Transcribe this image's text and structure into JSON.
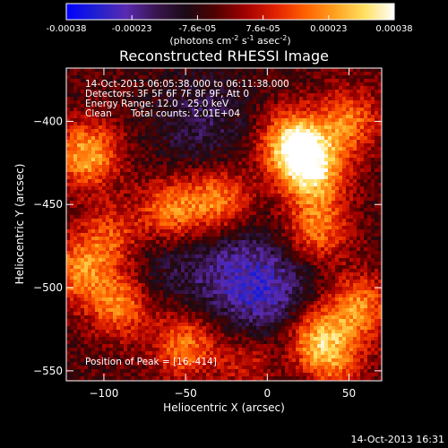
{
  "colors": {
    "background": "#000000",
    "foreground": "#ffffff",
    "colormap": [
      "#0000ff",
      "#2020d0",
      "#5a2ab0",
      "#3a1550",
      "#1a0a14",
      "#500000",
      "#a00000",
      "#e02000",
      "#ff6000",
      "#ffa020",
      "#ffe060",
      "#ffffff"
    ]
  },
  "colorbar": {
    "ticks": [
      "-0.00038",
      "-0.00023",
      "-7.6e-05",
      "7.6e-05",
      "0.00023",
      "0.00038"
    ],
    "unit_label": "(photons cm",
    "unit_sup1": "-2",
    "unit_mid": " s",
    "unit_sup2": "-1",
    "unit_mid2": " asec",
    "unit_sup3": "-2",
    "unit_end": ")"
  },
  "chart_data": {
    "type": "heatmap",
    "title": "Reconstructed RHESSI Image",
    "xlabel": "Heliocentric X (arcsec)",
    "ylabel": "Heliocentric Y (arcsec)",
    "xlim": [
      -123,
      70
    ],
    "ylim": [
      -556,
      -368
    ],
    "zlim": [
      -0.00038,
      0.00038
    ],
    "xticks": [
      -100,
      -50,
      0,
      50
    ],
    "yticks": [
      -400,
      -450,
      -500,
      -550
    ],
    "xtick_labels": [
      "−100",
      "−50",
      "0",
      "50"
    ],
    "ytick_labels": [
      "−400",
      "−450",
      "−500",
      "−550"
    ],
    "peak": [
      16,
      -414
    ],
    "bright_sources": [
      {
        "x": 16,
        "y": -414,
        "value": 0.00038
      },
      {
        "x": 28,
        "y": -430,
        "value": 0.00032
      },
      {
        "x": -110,
        "y": -420,
        "value": 0.0003
      },
      {
        "x": -60,
        "y": -455,
        "value": 0.00027
      },
      {
        "x": -30,
        "y": -448,
        "value": 0.00026
      },
      {
        "x": 30,
        "y": -465,
        "value": 0.00024
      },
      {
        "x": 55,
        "y": -512,
        "value": 0.00026
      },
      {
        "x": 28,
        "y": -530,
        "value": 0.00029
      },
      {
        "x": -50,
        "y": -535,
        "value": 0.00024
      },
      {
        "x": -90,
        "y": -510,
        "value": 0.00025
      },
      {
        "x": -115,
        "y": -490,
        "value": 0.00023
      },
      {
        "x": 50,
        "y": -400,
        "value": 0.00022
      },
      {
        "x": 40,
        "y": -545,
        "value": 0.0002
      },
      {
        "x": -10,
        "y": -545,
        "value": 0.00018
      },
      {
        "x": -95,
        "y": -470,
        "value": 0.00021
      }
    ],
    "dark_regions": [
      {
        "x": -40,
        "y": -400,
        "value": -0.00012
      },
      {
        "x": -20,
        "y": -490,
        "value": -0.00015
      },
      {
        "x": 5,
        "y": -505,
        "value": -0.00014
      },
      {
        "x": -70,
        "y": -480,
        "value": -0.0001
      },
      {
        "x": 10,
        "y": -545,
        "value": -8e-05
      }
    ]
  },
  "annotations": {
    "line1": "14-Oct-2013 06:05:38.000 to 06:11:38.000",
    "line2": "Detectors: 3F 5F 6F 7F 8F 9F, Att 0",
    "line3": "Energy Range: 12.0 - 25.0 keV",
    "line4_a": "Clean",
    "line4_b": "Total counts: 2.01E+04",
    "peak_label": "Position of Peak = [16,-414]"
  },
  "footer": {
    "timestamp": "14-Oct-2013 16:31"
  }
}
